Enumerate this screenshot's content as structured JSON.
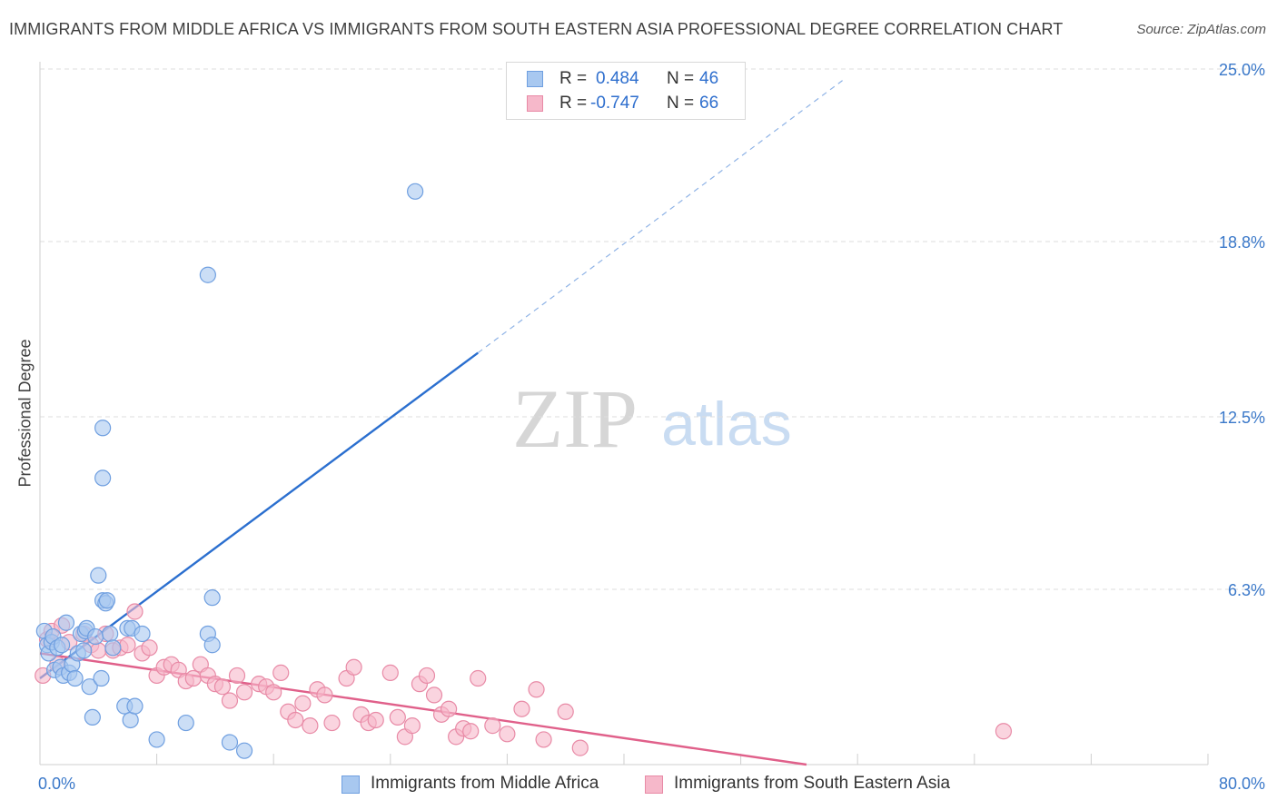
{
  "header": {
    "title": "IMMIGRANTS FROM MIDDLE AFRICA VS IMMIGRANTS FROM SOUTH EASTERN ASIA PROFESSIONAL DEGREE CORRELATION CHART",
    "source": "Source: ZipAtlas.com"
  },
  "watermark": {
    "zip": "ZIP",
    "atlas": "atlas"
  },
  "legend": {
    "r_label": "R =",
    "n_label": "N =",
    "series1": {
      "r": "0.484",
      "n": "46"
    },
    "series2": {
      "r": "-0.747",
      "n": "66"
    }
  },
  "colors": {
    "series1_fill": "#a8c8f0",
    "series1_stroke": "#6f9fe0",
    "series1_line": "#2b6fcf",
    "series2_fill": "#f6b8ca",
    "series2_stroke": "#e88aa6",
    "series2_line": "#e0608a",
    "tick_label": "#3a78c9",
    "grid": "#dedede"
  },
  "chart_data": {
    "type": "scatter",
    "title": "IMMIGRANTS FROM MIDDLE AFRICA VS IMMIGRANTS FROM SOUTH EASTERN ASIA PROFESSIONAL DEGREE CORRELATION CHART",
    "xlabel": "",
    "ylabel": "Professional Degree",
    "xlim": [
      0,
      80
    ],
    "ylim": [
      0,
      25
    ],
    "x_tick_labels": [
      "0.0%",
      "80.0%"
    ],
    "y_ticks": [
      6.3,
      12.5,
      18.8,
      25.0
    ],
    "y_tick_labels": [
      "6.3%",
      "12.5%",
      "18.8%",
      "25.0%"
    ],
    "grid": true,
    "legend_position": "top-center",
    "series": [
      {
        "name": "Immigrants from Middle Africa",
        "r": 0.484,
        "n": 46,
        "trend": {
          "x": [
            0,
            30
          ],
          "y": [
            3.1,
            14.8
          ],
          "dashed_to": {
            "x": 55,
            "y": 24.6
          }
        },
        "points": [
          [
            0.3,
            4.8
          ],
          [
            0.5,
            4.3
          ],
          [
            0.6,
            4.0
          ],
          [
            0.8,
            4.4
          ],
          [
            0.9,
            4.6
          ],
          [
            1.0,
            3.4
          ],
          [
            1.2,
            4.2
          ],
          [
            1.4,
            3.5
          ],
          [
            1.5,
            4.3
          ],
          [
            1.6,
            3.2
          ],
          [
            1.8,
            5.1
          ],
          [
            2.0,
            3.3
          ],
          [
            2.2,
            3.6
          ],
          [
            2.4,
            3.1
          ],
          [
            2.6,
            4.0
          ],
          [
            2.8,
            4.7
          ],
          [
            3.0,
            4.1
          ],
          [
            3.1,
            4.8
          ],
          [
            3.2,
            4.9
          ],
          [
            3.4,
            2.8
          ],
          [
            3.6,
            1.7
          ],
          [
            3.8,
            4.6
          ],
          [
            4.0,
            6.8
          ],
          [
            4.2,
            3.1
          ],
          [
            4.3,
            5.9
          ],
          [
            4.5,
            5.8
          ],
          [
            4.6,
            5.9
          ],
          [
            4.8,
            4.7
          ],
          [
            5.0,
            4.2
          ],
          [
            4.3,
            12.1
          ],
          [
            5.8,
            2.1
          ],
          [
            6.0,
            4.9
          ],
          [
            6.2,
            1.6
          ],
          [
            6.3,
            4.9
          ],
          [
            6.5,
            2.1
          ],
          [
            7.0,
            4.7
          ],
          [
            8.0,
            0.9
          ],
          [
            10.0,
            1.5
          ],
          [
            11.5,
            4.7
          ],
          [
            11.8,
            4.3
          ],
          [
            11.8,
            6.0
          ],
          [
            13.0,
            0.8
          ],
          [
            14.0,
            0.5
          ],
          [
            11.5,
            17.6
          ],
          [
            25.7,
            20.6
          ],
          [
            4.3,
            10.3
          ]
        ]
      },
      {
        "name": "Immigrants from South Eastern Asia",
        "r": -0.747,
        "n": 66,
        "trend": {
          "x": [
            0,
            52.5
          ],
          "y": [
            4.0,
            0.0
          ]
        },
        "points": [
          [
            0.2,
            3.2
          ],
          [
            0.5,
            4.5
          ],
          [
            0.8,
            4.8
          ],
          [
            1.2,
            3.6
          ],
          [
            1.5,
            5.0
          ],
          [
            2.0,
            4.4
          ],
          [
            3.0,
            4.7
          ],
          [
            3.5,
            4.3
          ],
          [
            4.0,
            4.1
          ],
          [
            4.5,
            4.7
          ],
          [
            5.0,
            4.1
          ],
          [
            5.5,
            4.2
          ],
          [
            6.0,
            4.3
          ],
          [
            6.5,
            5.5
          ],
          [
            7.0,
            4.0
          ],
          [
            7.5,
            4.2
          ],
          [
            8.0,
            3.2
          ],
          [
            8.5,
            3.5
          ],
          [
            9.0,
            3.6
          ],
          [
            9.5,
            3.4
          ],
          [
            10.0,
            3.0
          ],
          [
            10.5,
            3.1
          ],
          [
            11.0,
            3.6
          ],
          [
            11.5,
            3.2
          ],
          [
            12.0,
            2.9
          ],
          [
            12.5,
            2.8
          ],
          [
            13.0,
            2.3
          ],
          [
            13.5,
            3.2
          ],
          [
            14.0,
            2.6
          ],
          [
            15.0,
            2.9
          ],
          [
            15.5,
            2.8
          ],
          [
            16.0,
            2.6
          ],
          [
            16.5,
            3.3
          ],
          [
            17.0,
            1.9
          ],
          [
            17.5,
            1.6
          ],
          [
            18.0,
            2.2
          ],
          [
            18.5,
            1.4
          ],
          [
            19.0,
            2.7
          ],
          [
            19.5,
            2.5
          ],
          [
            20.0,
            1.5
          ],
          [
            21.0,
            3.1
          ],
          [
            21.5,
            3.5
          ],
          [
            22.0,
            1.8
          ],
          [
            22.5,
            1.5
          ],
          [
            23.0,
            1.6
          ],
          [
            24.0,
            3.3
          ],
          [
            24.5,
            1.7
          ],
          [
            25.0,
            1.0
          ],
          [
            25.5,
            1.4
          ],
          [
            26.0,
            2.9
          ],
          [
            26.5,
            3.2
          ],
          [
            27.0,
            2.5
          ],
          [
            27.5,
            1.8
          ],
          [
            28.0,
            2.0
          ],
          [
            28.5,
            1.0
          ],
          [
            29.0,
            1.3
          ],
          [
            29.5,
            1.2
          ],
          [
            30.0,
            3.1
          ],
          [
            31.0,
            1.4
          ],
          [
            32.0,
            1.1
          ],
          [
            33.0,
            2.0
          ],
          [
            34.0,
            2.7
          ],
          [
            34.5,
            0.9
          ],
          [
            36.0,
            1.9
          ],
          [
            37.0,
            0.6
          ],
          [
            66.0,
            1.2
          ]
        ]
      }
    ]
  }
}
